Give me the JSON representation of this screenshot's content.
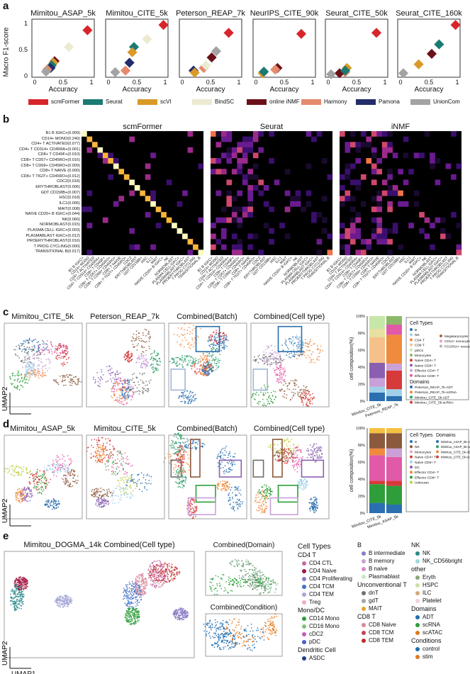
{
  "panel_a": {
    "label": "a",
    "ylabel": "Macro F1-score",
    "xlabel": "Accuracy",
    "yticks": [
      "1",
      "0.5",
      "0"
    ],
    "xticks": [
      "0",
      "0.5",
      "1"
    ],
    "legend": [
      {
        "name": "scmFormer",
        "color": "#d7262b"
      },
      {
        "name": "Seurat",
        "color": "#1c7a74"
      },
      {
        "name": "scVI",
        "color": "#d99a28"
      },
      {
        "name": "BindSC",
        "color": "#ecebd2"
      },
      {
        "name": "online iNMF",
        "color": "#6b1118"
      },
      {
        "name": "Harmony",
        "color": "#e58a6d"
      },
      {
        "name": "Pamona",
        "color": "#232d6b"
      },
      {
        "name": "UnionCom",
        "color": "#a3a3a3"
      }
    ]
  },
  "chart_data": [
    {
      "type": "scatter",
      "title": "Mimitou_ASAP_5k",
      "xlabel": "Accuracy",
      "ylabel": "Macro F1-score",
      "xlim": [
        0,
        1
      ],
      "ylim": [
        0,
        1
      ],
      "series": [
        {
          "name": "scmFormer",
          "x": [
            0.93
          ],
          "y": [
            0.87
          ]
        },
        {
          "name": "BindSC",
          "x": [
            0.6
          ],
          "y": [
            0.55
          ]
        },
        {
          "name": "online iNMF",
          "x": [
            0.35
          ],
          "y": [
            0.28
          ]
        },
        {
          "name": "scVI",
          "x": [
            0.33
          ],
          "y": [
            0.25
          ]
        },
        {
          "name": "Seurat",
          "x": [
            0.3
          ],
          "y": [
            0.2
          ]
        },
        {
          "name": "Pamona",
          "x": [
            0.28
          ],
          "y": [
            0.15
          ]
        },
        {
          "name": "Harmony",
          "x": [
            0.22
          ],
          "y": [
            0.12
          ]
        },
        {
          "name": "UnionCom",
          "x": [
            0.2
          ],
          "y": [
            0.08
          ]
        }
      ]
    },
    {
      "type": "scatter",
      "title": "Mimitou_CITE_5k",
      "xlim": [
        0,
        1
      ],
      "ylim": [
        0,
        1
      ],
      "series": [
        {
          "name": "scmFormer",
          "x": [
            0.97
          ],
          "y": [
            0.97
          ]
        },
        {
          "name": "BindSC",
          "x": [
            0.68
          ],
          "y": [
            0.7
          ]
        },
        {
          "name": "Seurat",
          "x": [
            0.45
          ],
          "y": [
            0.55
          ]
        },
        {
          "name": "scVI",
          "x": [
            0.42
          ],
          "y": [
            0.45
          ]
        },
        {
          "name": "Pamona",
          "x": [
            0.37
          ],
          "y": [
            0.25
          ]
        },
        {
          "name": "Harmony",
          "x": [
            0.3
          ],
          "y": [
            0.1
          ]
        },
        {
          "name": "UnionCom",
          "x": [
            0.12
          ],
          "y": [
            0.07
          ]
        }
      ]
    },
    {
      "type": "scatter",
      "title": "Peterson_REAP_7k",
      "xlim": [
        0,
        1
      ],
      "ylim": [
        0,
        1
      ],
      "series": [
        {
          "name": "scmFormer",
          "x": [
            0.82
          ],
          "y": [
            0.82
          ]
        },
        {
          "name": "UnionCom",
          "x": [
            0.6
          ],
          "y": [
            0.47
          ]
        },
        {
          "name": "online iNMF",
          "x": [
            0.52
          ],
          "y": [
            0.35
          ]
        },
        {
          "name": "Harmony",
          "x": [
            0.38
          ],
          "y": [
            0.15
          ]
        },
        {
          "name": "BindSC",
          "x": [
            0.42
          ],
          "y": [
            0.2
          ]
        },
        {
          "name": "Pamona",
          "x": [
            0.2
          ],
          "y": [
            0.1
          ]
        },
        {
          "name": "scVI",
          "x": [
            0.22
          ],
          "y": [
            0.06
          ]
        }
      ]
    },
    {
      "type": "scatter",
      "title": "NeurIPS_CITE_90k",
      "xlim": [
        0,
        1
      ],
      "ylim": [
        0,
        1
      ],
      "series": [
        {
          "name": "scmFormer",
          "x": [
            0.8
          ],
          "y": [
            0.8
          ]
        },
        {
          "name": "online iNMF",
          "x": [
            0.38
          ],
          "y": [
            0.15
          ]
        },
        {
          "name": "Harmony",
          "x": [
            0.34
          ],
          "y": [
            0.12
          ]
        },
        {
          "name": "scVI",
          "x": [
            0.12
          ],
          "y": [
            0.05
          ]
        },
        {
          "name": "Seurat",
          "x": [
            0.14
          ],
          "y": [
            0.08
          ]
        }
      ]
    },
    {
      "type": "scatter",
      "title": "Seurat_CITE_50k",
      "xlim": [
        0,
        1
      ],
      "ylim": [
        0,
        1
      ],
      "series": [
        {
          "name": "scmFormer",
          "x": [
            0.85
          ],
          "y": [
            0.82
          ]
        },
        {
          "name": "scVI",
          "x": [
            0.33
          ],
          "y": [
            0.15
          ]
        },
        {
          "name": "Harmony",
          "x": [
            0.3
          ],
          "y": [
            0.07
          ]
        },
        {
          "name": "online iNMF",
          "x": [
            0.2
          ],
          "y": [
            0.05
          ]
        },
        {
          "name": "UnionCom",
          "x": [
            0.05
          ],
          "y": [
            0.03
          ]
        },
        {
          "name": "Seurat",
          "x": [
            0.3
          ],
          "y": [
            0.1
          ]
        }
      ]
    },
    {
      "type": "scatter",
      "title": "Seurat_CITE_160k",
      "xlim": [
        0,
        1
      ],
      "ylim": [
        0,
        1
      ],
      "series": [
        {
          "name": "scmFormer",
          "x": [
            0.97
          ],
          "y": [
            0.97
          ]
        },
        {
          "name": "Seurat",
          "x": [
            0.68
          ],
          "y": [
            0.6
          ]
        },
        {
          "name": "online iNMF",
          "x": [
            0.55
          ],
          "y": [
            0.42
          ]
        },
        {
          "name": "scVI",
          "x": [
            0.32
          ],
          "y": [
            0.22
          ]
        },
        {
          "name": "UnionCom",
          "x": [
            0.05
          ],
          "y": [
            0.05
          ]
        }
      ]
    }
  ],
  "panel_b": {
    "label": "b",
    "titles": [
      "scmFormer",
      "Seurat",
      "iNMF"
    ],
    "rows": [
      "B1 B IGKC+(0.009)",
      "CD14+ MONO(0.240)",
      "CD4+ T ACTIVATED(0.077)",
      "CD4+ T CD314+ CD45RA+(0.001)",
      "CD8+ T CD49F+(0.010)",
      "CD8+ T CD57+ CD45RO+(0.016)",
      "CD8+ T CD69+ CD45RO+(0.009)",
      "CD8+ T NAIVE (0.000)",
      "CD8+ T TIGIT+ CD45RO+(0.012)",
      "CDC2(0.018)",
      "ERYTHROBLAST(0.006)",
      "GDT CD158B+(0.007)",
      "HSC(0.018)",
      "ILC1(0.006)",
      "MAIT(0.008)",
      "NAIVE CD20+ B IGKC+(0.044)",
      "NK(0.060)",
      "NORMOBLAST(0.015)",
      "PLASMA CELL IGKC+(0.003)",
      "PLASMABLAST IGKC+(0.012)",
      "PROERYTHROBLAST(0.016)",
      "T PROG CYCLING(0.000)",
      "TRANSITIONAL B(0.017)"
    ],
    "cols": [
      "B1 B IGKC+",
      "CD14+ MONO",
      "CD4+ T ACTIVATED",
      "CD4+ T CD314+ CD45RA+",
      "CD8+ T CD49F+",
      "CD8+ T CD57+ CD45RO+",
      "CD8+ T CD69+ CD45RO+",
      "CD8+ T NAIVE",
      "CD8+ T TIGIT+ CD45RO+",
      "CDC2",
      "ERYTHROBLAST",
      "GDT CD158B+",
      "HSC",
      "ILC1",
      "MAIT",
      "NAIVE CD20+ B IGKC+",
      "NK",
      "NORMOBLAST",
      "PLASMA CELL IGKC+",
      "PLASMABLAST IGKC+",
      "PROERYTHROBLAST",
      "T PROG CYCLING",
      "TRANSITIONAL B"
    ]
  },
  "panel_c": {
    "label": "c",
    "titles": [
      "Mimitou_CITE_5k",
      "Peterson_REAP_7k",
      "Combined(Batch)",
      "Combined(Cell type)"
    ],
    "umap1": "UMAP1",
    "umap2": "UMAP2",
    "bar_ylabel": "cell composition(%)",
    "bar_yticks": [
      "100%",
      "80%",
      "60%",
      "40%",
      "20%",
      "0%"
    ],
    "bar_xlabels": [
      "Mimitou_CITE_5k",
      "Peterson_REAP_7k"
    ],
    "cell_types_title": "Cell Types",
    "cell_types": [
      {
        "name": "B",
        "color": "#2a6fb0"
      },
      {
        "name": "NK",
        "color": "#9fd0e8"
      },
      {
        "name": "CD4 T",
        "color": "#f08a3c"
      },
      {
        "name": "CD8 T",
        "color": "#f6c08a"
      },
      {
        "name": "pDCs",
        "color": "#c7e7a8"
      },
      {
        "name": "Monocytes",
        "color": "#8db86a"
      },
      {
        "name": "Naive CD4+ T",
        "color": "#d63a3a"
      },
      {
        "name": "Naive CD8+ T",
        "color": "#8a5fb0"
      },
      {
        "name": "Effector CD4+ T",
        "color": "#c9a0d8"
      },
      {
        "name": "Effector CD8+ T",
        "color": "#e05aa8"
      }
    ],
    "cell_types_right": [
      {
        "name": "Megakaryocytes",
        "color": "#9b6b4b"
      },
      {
        "name": "CD14+ monocytes",
        "color": "#e8a0c8"
      },
      {
        "name": "FCGR3A+ monocytes",
        "color": "#b3b3b3"
      }
    ],
    "domains_title": "Domains",
    "domains": [
      {
        "name": "Peterson_REAP_7k-ADT",
        "color": "#2a6fb0"
      },
      {
        "name": "Peterson_REAP_7k-scRNA",
        "color": "#f08a3c"
      },
      {
        "name": "Mimitou_CITE_5k-ADT",
        "color": "#2e9e6a"
      },
      {
        "name": "Mimitou_CITE_5k-scRNA",
        "color": "#d63a3a"
      }
    ],
    "stacks": [
      {
        "segments": [
          {
            "value": 10,
            "color": "#2a6fb0"
          },
          {
            "value": 7,
            "color": "#9fd0e8"
          },
          {
            "value": 10,
            "color": "#c9a0d8"
          },
          {
            "value": 18,
            "color": "#8a5fb0"
          },
          {
            "value": 30,
            "color": "#f6c08a"
          },
          {
            "value": 10,
            "color": "#e8e0a0"
          },
          {
            "value": 15,
            "color": "#c7e7a8"
          }
        ]
      },
      {
        "segments": [
          {
            "value": 6,
            "color": "#2a6fb0"
          },
          {
            "value": 8,
            "color": "#9fd0e8"
          },
          {
            "value": 22,
            "color": "#d63a3a"
          },
          {
            "value": 8,
            "color": "#c9a0d8"
          },
          {
            "value": 34,
            "color": "#f08a3c"
          },
          {
            "value": 12,
            "color": "#e05aa8"
          },
          {
            "value": 10,
            "color": "#8db86a"
          }
        ]
      }
    ]
  },
  "panel_d": {
    "label": "d",
    "titles": [
      "Mimitou_ASAP_5k",
      "Mimitou_CITE_5k",
      "Combined(Batch)",
      "Combined(Cell type)"
    ],
    "umap1": "UMAP1",
    "umap2": "UMAP2",
    "bar_ylabel": "cell composition(%)",
    "bar_yticks": [
      "100%",
      "80%",
      "60%",
      "40%",
      "20%",
      "0%"
    ],
    "bar_xlabels": [
      "Mimitou_CITE_5k",
      "Mimitou_ASAP_5k"
    ],
    "cell_types_title": "Cell Types",
    "domains_title": "Domains",
    "cell_types": [
      {
        "name": "B",
        "color": "#2a6fb0"
      },
      {
        "name": "NK",
        "color": "#8b5a3c"
      },
      {
        "name": "Monocytes",
        "color": "#e8a0c8"
      },
      {
        "name": "Naive CD4+ T",
        "color": "#d63a3a"
      },
      {
        "name": "Naive CD8+ T",
        "color": "#9fd0e8"
      },
      {
        "name": "DC",
        "color": "#8a5fb0"
      },
      {
        "name": "Effector CD4+ T",
        "color": "#f08a3c"
      },
      {
        "name": "Effector CD8+ T",
        "color": "#2e9e3a"
      },
      {
        "name": "Unknown",
        "color": "#bcd040"
      }
    ],
    "domains": [
      {
        "name": "Mimitou_ASAP_5k-ADT",
        "color": "#2a6fb0"
      },
      {
        "name": "Mimitou_ASAP_5k-scATAC",
        "color": "#2e9e6a"
      },
      {
        "name": "Mimitou_CITE_5k-ADT",
        "color": "#f08a3c"
      },
      {
        "name": "Mimitou_CITE_5k-scRNA",
        "color": "#d63a3a"
      }
    ],
    "stacks": [
      {
        "segments": [
          {
            "value": 12,
            "color": "#2a6fb0"
          },
          {
            "value": 22,
            "color": "#2e9e3a"
          },
          {
            "value": 4,
            "color": "#d63a3a"
          },
          {
            "value": 30,
            "color": "#e05aa8"
          },
          {
            "value": 8,
            "color": "#f08a3c"
          },
          {
            "value": 18,
            "color": "#8b5a3c"
          },
          {
            "value": 6,
            "color": "#f6c040"
          }
        ]
      },
      {
        "segments": [
          {
            "value": 10,
            "color": "#2a6fb0"
          },
          {
            "value": 22,
            "color": "#2e9e3a"
          },
          {
            "value": 6,
            "color": "#d63a3a"
          },
          {
            "value": 28,
            "color": "#e05aa8"
          },
          {
            "value": 10,
            "color": "#c9a0d8"
          },
          {
            "value": 18,
            "color": "#8b5a3c"
          },
          {
            "value": 6,
            "color": "#f6c040"
          }
        ]
      }
    ]
  },
  "panel_e": {
    "label": "e",
    "title_main": "Mimitou_DOGMA_14k Combined(Cell type)",
    "title_domain": "Combined(Domain)",
    "title_condition": "Combined(Condition)",
    "umap1": "UMAP1",
    "umap2": "UMAP2",
    "legend_title": "Cell Types",
    "groups": [
      {
        "title": "CD4 T",
        "items": [
          {
            "name": "CD4 CTL",
            "color": "#c46aa0"
          },
          {
            "name": "CD4 Naive",
            "color": "#a3133f"
          },
          {
            "name": "CD4 Proliferating",
            "color": "#8a7bc4"
          },
          {
            "name": "CD4 TCM",
            "color": "#3f6fc8"
          },
          {
            "name": "CD4 TEM",
            "color": "#a6a6d6"
          },
          {
            "name": "Treg",
            "color": "#f2a8c8"
          }
        ]
      },
      {
        "title": "Mono/DC",
        "items": [
          {
            "name": "CD14 Mono",
            "color": "#2e9e3a"
          },
          {
            "name": "CD16 Mono",
            "color": "#7fc07a"
          },
          {
            "name": "cDC2",
            "color": "#c45ab8"
          },
          {
            "name": "pDC",
            "color": "#4a5dc8"
          }
        ]
      },
      {
        "title": "Dendritic Cell",
        "items": [
          {
            "name": "ASDC",
            "color": "#1f3a8a"
          }
        ]
      },
      {
        "title": "B",
        "items": [
          {
            "name": "B intermediate",
            "color": "#8a7bc4"
          },
          {
            "name": "B memory",
            "color": "#c9a0d8"
          },
          {
            "name": "B naive",
            "color": "#d98ad0"
          },
          {
            "name": "Plasmablast",
            "color": "#c7e7c0"
          }
        ]
      },
      {
        "title": "Unconventional T",
        "items": [
          {
            "name": "dnT",
            "color": "#6f6f6f"
          },
          {
            "name": "gdT",
            "color": "#a3a3a3"
          },
          {
            "name": "MAIT",
            "color": "#e8a030"
          }
        ]
      },
      {
        "title": "CD8 T",
        "items": [
          {
            "name": "CD8 Naive",
            "color": "#d88a9a"
          },
          {
            "name": "CD8 TCM",
            "color": "#c4435a"
          },
          {
            "name": "CD8 TEM",
            "color": "#c42a2a"
          }
        ]
      },
      {
        "title": "NK",
        "items": [
          {
            "name": "NK",
            "color": "#2a8a8a"
          },
          {
            "name": "NK_CD56bright",
            "color": "#9fd8d8"
          }
        ]
      },
      {
        "title": "other",
        "items": [
          {
            "name": "Eryth",
            "color": "#8aa878"
          },
          {
            "name": "HSPC",
            "color": "#cde0a8"
          },
          {
            "name": "ILC",
            "color": "#d6a878"
          },
          {
            "name": "Platelet",
            "color": "#f0d0e0"
          }
        ]
      },
      {
        "title": "Domains",
        "items": [
          {
            "name": "ADT",
            "color": "#1f6fb0"
          },
          {
            "name": "scRNA",
            "color": "#2e9e3a"
          },
          {
            "name": "scATAC",
            "color": "#e07a20"
          }
        ]
      },
      {
        "title": "Conditions",
        "items": [
          {
            "name": "control",
            "color": "#1f6fb0"
          },
          {
            "name": "stim",
            "color": "#e07a20"
          }
        ]
      }
    ]
  }
}
